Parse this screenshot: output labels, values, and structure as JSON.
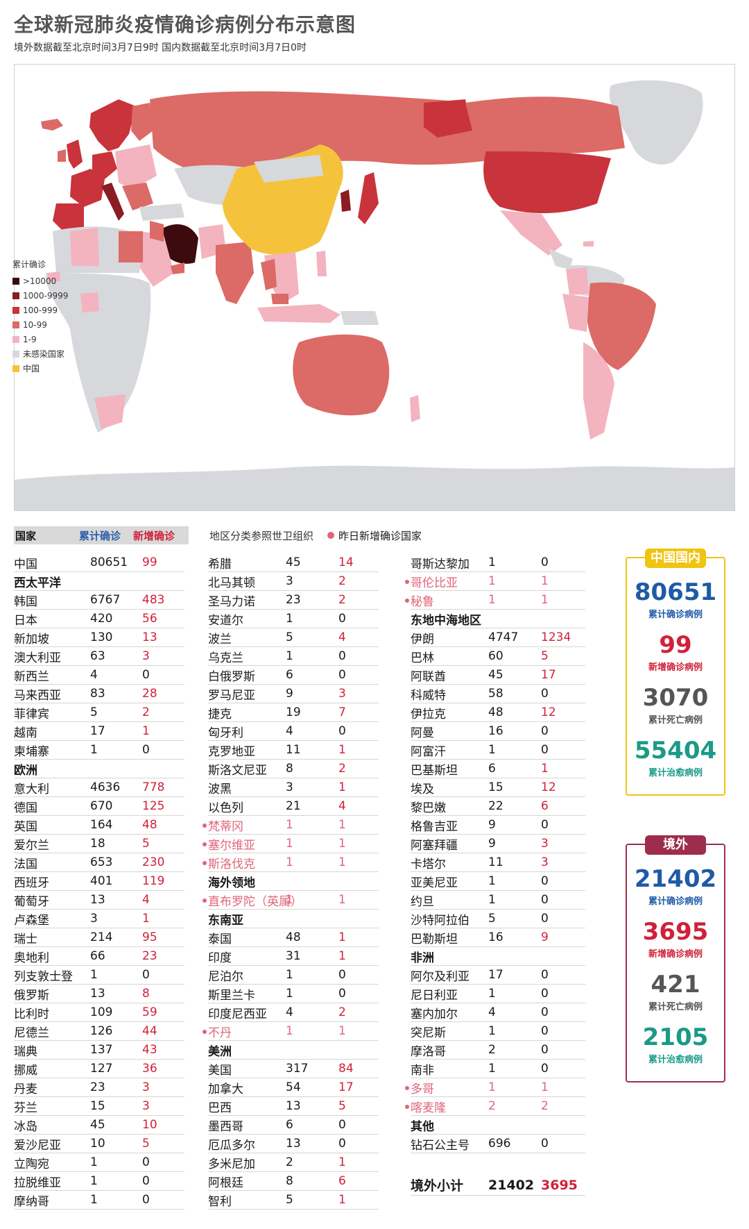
{
  "title": "全球新冠肺炎疫情确诊病例分布示意图",
  "subtitle": "境外数据截至北京时间3月7日9时   国内数据截至北京时间3月7日0时",
  "legend": {
    "title": "累计确诊",
    "items": [
      {
        "label": ">10000",
        "color": "#3d0a0e"
      },
      {
        "label": "1000-9999",
        "color": "#8a1c24"
      },
      {
        "label": "100-999",
        "color": "#c9333b"
      },
      {
        "label": "10-99",
        "color": "#dc6a66"
      },
      {
        "label": "1-9",
        "color": "#f3b3bf"
      },
      {
        "label": "未感染国家",
        "color": "#d6d8dc"
      },
      {
        "label": "中国",
        "color": "#f5c33b"
      }
    ]
  },
  "table": {
    "header_country": "国家",
    "header_total": "累计确诊",
    "header_new": "新增确诊",
    "note": "地区分类参照世卫组织",
    "dot_note": "昨日新增确诊国家",
    "columns": [
      [
        {
          "name": "中国",
          "total": "80651",
          "new": "99"
        },
        {
          "section": "西太平洋"
        },
        {
          "name": "韩国",
          "total": "6767",
          "new": "483"
        },
        {
          "name": "日本",
          "total": "420",
          "new": "56"
        },
        {
          "name": "新加坡",
          "total": "130",
          "new": "13"
        },
        {
          "name": "澳大利亚",
          "total": "63",
          "new": "3"
        },
        {
          "name": "新西兰",
          "total": "4",
          "new": "0"
        },
        {
          "name": "马来西亚",
          "total": "83",
          "new": "28"
        },
        {
          "name": "菲律宾",
          "total": "5",
          "new": "2"
        },
        {
          "name": "越南",
          "total": "17",
          "new": "1"
        },
        {
          "name": "柬埔寨",
          "total": "1",
          "new": "0"
        },
        {
          "section": "欧洲"
        },
        {
          "name": "意大利",
          "total": "4636",
          "new": "778"
        },
        {
          "name": "德国",
          "total": "670",
          "new": "125"
        },
        {
          "name": "英国",
          "total": "164",
          "new": "48"
        },
        {
          "name": "爱尔兰",
          "total": "18",
          "new": "5"
        },
        {
          "name": "法国",
          "total": "653",
          "new": "230"
        },
        {
          "name": "西班牙",
          "total": "401",
          "new": "119"
        },
        {
          "name": "葡萄牙",
          "total": "13",
          "new": "4"
        },
        {
          "name": "卢森堡",
          "total": "3",
          "new": "1"
        },
        {
          "name": "瑞士",
          "total": "214",
          "new": "95"
        },
        {
          "name": "奥地利",
          "total": "66",
          "new": "23"
        },
        {
          "name": "列支敦士登",
          "total": "1",
          "new": "0"
        },
        {
          "name": "俄罗斯",
          "total": "13",
          "new": "8"
        },
        {
          "name": "比利时",
          "total": "109",
          "new": "59"
        },
        {
          "name": "尼德兰",
          "total": "126",
          "new": "44"
        },
        {
          "name": "瑞典",
          "total": "137",
          "new": "43"
        },
        {
          "name": "挪威",
          "total": "127",
          "new": "36"
        },
        {
          "name": "丹麦",
          "total": "23",
          "new": "3"
        },
        {
          "name": "芬兰",
          "total": "15",
          "new": "3"
        },
        {
          "name": "冰岛",
          "total": "45",
          "new": "10"
        },
        {
          "name": "爱沙尼亚",
          "total": "10",
          "new": "5"
        },
        {
          "name": "立陶宛",
          "total": "1",
          "new": "0"
        },
        {
          "name": "拉脱维亚",
          "total": "1",
          "new": "0"
        },
        {
          "name": "摩纳哥",
          "total": "1",
          "new": "0"
        }
      ],
      [
        {
          "name": "希腊",
          "total": "45",
          "new": "14"
        },
        {
          "name": "北马其顿",
          "total": "3",
          "new": "2"
        },
        {
          "name": "圣马力诺",
          "total": "23",
          "new": "2"
        },
        {
          "name": "安道尔",
          "total": "1",
          "new": "0"
        },
        {
          "name": "波兰",
          "total": "5",
          "new": "4"
        },
        {
          "name": "乌克兰",
          "total": "1",
          "new": "0"
        },
        {
          "name": "白俄罗斯",
          "total": "6",
          "new": "0"
        },
        {
          "name": "罗马尼亚",
          "total": "9",
          "new": "3"
        },
        {
          "name": "捷克",
          "total": "19",
          "new": "7"
        },
        {
          "name": "匈牙利",
          "total": "4",
          "new": "0"
        },
        {
          "name": "克罗地亚",
          "total": "11",
          "new": "1"
        },
        {
          "name": "斯洛文尼亚",
          "total": "8",
          "new": "2"
        },
        {
          "name": "波黑",
          "total": "3",
          "new": "1"
        },
        {
          "name": "以色列",
          "total": "21",
          "new": "4"
        },
        {
          "name": "梵蒂冈",
          "total": "1",
          "new": "1",
          "newCountry": true
        },
        {
          "name": "塞尔维亚",
          "total": "1",
          "new": "1",
          "newCountry": true
        },
        {
          "name": "斯洛伐克",
          "total": "1",
          "new": "1",
          "newCountry": true
        },
        {
          "section": "海外领地"
        },
        {
          "name": "直布罗陀（英属）",
          "total": "1",
          "new": "1",
          "newCountry": true
        },
        {
          "section": "东南亚"
        },
        {
          "name": "泰国",
          "total": "48",
          "new": "1"
        },
        {
          "name": "印度",
          "total": "31",
          "new": "1"
        },
        {
          "name": "尼泊尔",
          "total": "1",
          "new": "0"
        },
        {
          "name": "斯里兰卡",
          "total": "1",
          "new": "0"
        },
        {
          "name": "印度尼西亚",
          "total": "4",
          "new": "2"
        },
        {
          "name": "不丹",
          "total": "1",
          "new": "1",
          "newCountry": true
        },
        {
          "section": "美洲"
        },
        {
          "name": "美国",
          "total": "317",
          "new": "84"
        },
        {
          "name": "加拿大",
          "total": "54",
          "new": "17"
        },
        {
          "name": "巴西",
          "total": "13",
          "new": "5"
        },
        {
          "name": "墨西哥",
          "total": "6",
          "new": "0"
        },
        {
          "name": "厄瓜多尔",
          "total": "13",
          "new": "0"
        },
        {
          "name": "多米尼加",
          "total": "2",
          "new": "1"
        },
        {
          "name": "阿根廷",
          "total": "8",
          "new": "6"
        },
        {
          "name": "智利",
          "total": "5",
          "new": "1"
        }
      ],
      [
        {
          "name": "哥斯达黎加",
          "total": "1",
          "new": "0"
        },
        {
          "name": "哥伦比亚",
          "total": "1",
          "new": "1",
          "newCountry": true
        },
        {
          "name": "秘鲁",
          "total": "1",
          "new": "1",
          "newCountry": true
        },
        {
          "section": "东地中海地区"
        },
        {
          "name": "伊朗",
          "total": "4747",
          "new": "1234"
        },
        {
          "name": "巴林",
          "total": "60",
          "new": "5"
        },
        {
          "name": "阿联酋",
          "total": "45",
          "new": "17"
        },
        {
          "name": "科威特",
          "total": "58",
          "new": "0"
        },
        {
          "name": "伊拉克",
          "total": "48",
          "new": "12"
        },
        {
          "name": "阿曼",
          "total": "16",
          "new": "0"
        },
        {
          "name": "阿富汗",
          "total": "1",
          "new": "0"
        },
        {
          "name": "巴基斯坦",
          "total": "6",
          "new": "1"
        },
        {
          "name": "埃及",
          "total": "15",
          "new": "12"
        },
        {
          "name": "黎巴嫩",
          "total": "22",
          "new": "6"
        },
        {
          "name": "格鲁吉亚",
          "total": "9",
          "new": "0"
        },
        {
          "name": "阿塞拜疆",
          "total": "9",
          "new": "3"
        },
        {
          "name": "卡塔尔",
          "total": "11",
          "new": "3"
        },
        {
          "name": "亚美尼亚",
          "total": "1",
          "new": "0"
        },
        {
          "name": "约旦",
          "total": "1",
          "new": "0"
        },
        {
          "name": "沙特阿拉伯",
          "total": "5",
          "new": "0"
        },
        {
          "name": "巴勒斯坦",
          "total": "16",
          "new": "9"
        },
        {
          "section": "非洲"
        },
        {
          "name": "阿尔及利亚",
          "total": "17",
          "new": "0"
        },
        {
          "name": "尼日利亚",
          "total": "1",
          "new": "0"
        },
        {
          "name": "塞内加尔",
          "total": "4",
          "new": "0"
        },
        {
          "name": "突尼斯",
          "total": "1",
          "new": "0"
        },
        {
          "name": "摩洛哥",
          "total": "2",
          "new": "0"
        },
        {
          "name": "南非",
          "total": "1",
          "new": "0"
        },
        {
          "name": "多哥",
          "total": "1",
          "new": "1",
          "newCountry": true
        },
        {
          "name": "喀麦隆",
          "total": "2",
          "new": "2",
          "newCountry": true
        },
        {
          "section": "其他"
        },
        {
          "name": "钻石公主号",
          "total": "696",
          "new": "0"
        }
      ]
    ],
    "subtotal": {
      "label": "境外小计",
      "total": "21402",
      "new": "3695"
    }
  },
  "china_box": {
    "tag": "中国国内",
    "confirmed": "80651",
    "confirmed_label": "累计确诊病例",
    "new": "99",
    "new_label": "新增确诊病例",
    "deaths": "3070",
    "deaths_label": "累计死亡病例",
    "recovered": "55404",
    "recovered_label": "累计治愈病例"
  },
  "intl_box": {
    "tag": "境外",
    "confirmed": "21402",
    "confirmed_label": "累计确诊病例",
    "new": "3695",
    "new_label": "新增确诊病例",
    "deaths": "421",
    "deaths_label": "累计死亡病例",
    "recovered": "2105",
    "recovered_label": "累计治愈病例"
  }
}
